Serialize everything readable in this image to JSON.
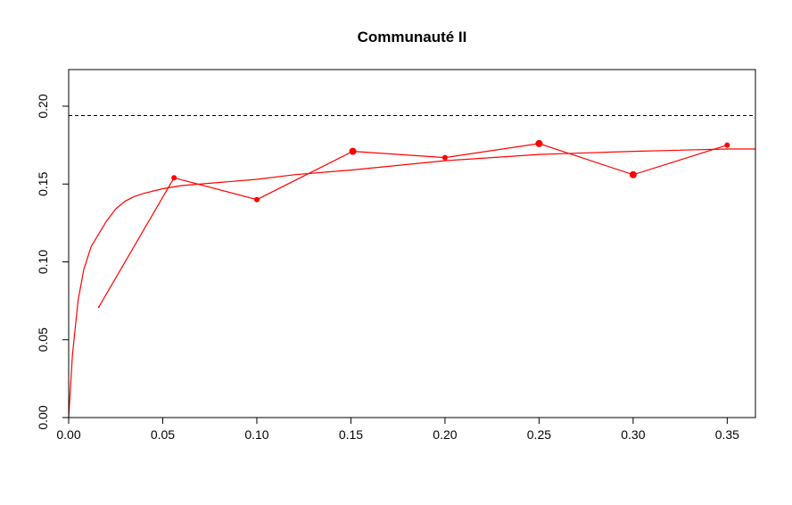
{
  "chart_data": {
    "type": "line",
    "title": "Communauté II",
    "xlabel": "",
    "ylabel": "",
    "xlim": [
      0.0,
      0.365
    ],
    "ylim": [
      0.0,
      0.2235
    ],
    "x_ticks": [
      "0.00",
      "0.05",
      "0.10",
      "0.15",
      "0.20",
      "0.25",
      "0.30",
      "0.35"
    ],
    "y_ticks": [
      "0.00",
      "0.05",
      "0.10",
      "0.15",
      "0.20"
    ],
    "grid": false,
    "legend": "none",
    "reference_line": {
      "y": 0.194,
      "style": "dashed",
      "color": "#000000"
    },
    "series": [
      {
        "style": "points-lines",
        "color": "#ff0000",
        "x": [
          0.016,
          0.056,
          0.1,
          0.151,
          0.2,
          0.25,
          0.3,
          0.35
        ],
        "y": [
          0.071,
          0.154,
          0.14,
          0.171,
          0.167,
          0.176,
          0.156,
          0.175
        ],
        "point_sizes": [
          1,
          3,
          3,
          4,
          3,
          4,
          4,
          3
        ]
      },
      {
        "style": "smooth-fit",
        "color": "#ff0000",
        "x": [
          0.0,
          0.002,
          0.005,
          0.008,
          0.012,
          0.016,
          0.02,
          0.025,
          0.03,
          0.035,
          0.04,
          0.05,
          0.06,
          0.08,
          0.1,
          0.12,
          0.15,
          0.2,
          0.25,
          0.3,
          0.35,
          0.365
        ],
        "y": [
          0.0,
          0.04,
          0.075,
          0.095,
          0.11,
          0.118,
          0.126,
          0.134,
          0.139,
          0.142,
          0.144,
          0.147,
          0.149,
          0.151,
          0.153,
          0.156,
          0.159,
          0.165,
          0.169,
          0.171,
          0.1725,
          0.1725
        ]
      }
    ]
  }
}
